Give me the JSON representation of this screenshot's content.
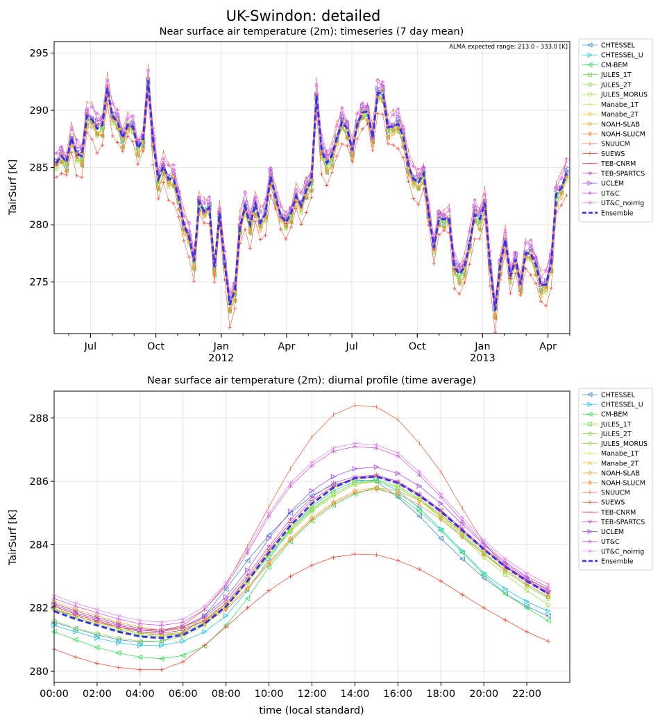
{
  "suptitle": "UK-Swindon: detailed",
  "chart_data": [
    {
      "type": "line",
      "title": "Near surface air temperature (2m): timeseries (7 day mean)",
      "ylabel": "TairSurf [K]",
      "xlabel": "",
      "annotation": "ALMA expected range: 213.0 - 333.0 [K]",
      "ylim": [
        270.5,
        296.0
      ],
      "yticks": [
        275,
        280,
        285,
        290,
        295
      ],
      "xlim_months": [
        4.33,
        28.0
      ],
      "xticks": [
        {
          "label": "Jul",
          "sub": "",
          "m": 6
        },
        {
          "label": "Oct",
          "sub": "",
          "m": 9
        },
        {
          "label": "Jan",
          "sub": "2012",
          "m": 12
        },
        {
          "label": "Apr",
          "sub": "",
          "m": 15
        },
        {
          "label": "Jul",
          "sub": "",
          "m": 18
        },
        {
          "label": "Oct",
          "sub": "",
          "m": 21
        },
        {
          "label": "Jan",
          "sub": "2013",
          "m": 24
        },
        {
          "label": "Apr",
          "sub": "",
          "m": 27
        }
      ],
      "grid": true,
      "legend_position": "outside-right",
      "ensemble_weekly": [
        285.4,
        286.0,
        285.5,
        287.6,
        286.2,
        286.0,
        289.5,
        289.2,
        288.4,
        288.7,
        291.9,
        289.5,
        289.0,
        287.6,
        288.7,
        288.6,
        286.7,
        287.5,
        292.6,
        287.2,
        284.0,
        285.1,
        284.0,
        284.0,
        282.3,
        280.0,
        279.0,
        276.8,
        282.0,
        281.2,
        281.5,
        276.3,
        281.0,
        276.7,
        273.0,
        274.3,
        279.8,
        281.6,
        280.0,
        281.8,
        280.2,
        281.0,
        284.2,
        282.4,
        280.8,
        280.2,
        281.0,
        282.5,
        281.7,
        283.0,
        283.9,
        291.3,
        286.5,
        285.4,
        286.0,
        287.6,
        289.0,
        288.4,
        286.5,
        288.8,
        289.8,
        289.9,
        287.6,
        291.5,
        291.5,
        288.5,
        288.6,
        288.8,
        287.7,
        285.2,
        284.0,
        283.7,
        284.5,
        281.0,
        278.0,
        280.5,
        280.5,
        280.5,
        276.3,
        275.7,
        276.3,
        278.3,
        280.9,
        280.5,
        281.9,
        276.5,
        272.5,
        276.5,
        278.7,
        275.5,
        277.0,
        274.8,
        277.5,
        277.5,
        276.5,
        274.7,
        274.8,
        276.6,
        282.7,
        283.2,
        284.5
      ],
      "suews_weekly_offset": -1.8,
      "snuucm_weekly_offset": 1.1,
      "series_offsets_weekly": {
        "CHTESSEL": 0.0,
        "CHTESSEL_U": -0.1,
        "CM-BEM": -0.6,
        "JULES_1T": -0.2,
        "JULES_2T": -0.3,
        "JULES_MORUS": -0.4,
        "Manabe_1T": 0.1,
        "Manabe_2T": -0.1,
        "NOAH-SLAB": -0.7,
        "NOAH-SLUCM": -0.6,
        "SNUUCM": 1.1,
        "SUEWS": -1.8,
        "TEB-CNRM": 0.2,
        "TEB-SPARTCS": 0.3,
        "UCLEM": 0.4,
        "UT&C": 1.0,
        "UT&C_noirrig": 0.8,
        "Ensemble": 0.0
      }
    },
    {
      "type": "line",
      "title": "Near surface air temperature (2m): diurnal profile (time average)",
      "ylabel": "TairSurf [K]",
      "xlabel": "time (local standard)",
      "ylim": [
        279.65,
        288.85
      ],
      "yticks": [
        280,
        282,
        284,
        286,
        288
      ],
      "xlim": [
        0,
        24
      ],
      "xticks": [
        "00:00",
        "02:00",
        "04:00",
        "06:00",
        "08:00",
        "10:00",
        "12:00",
        "14:00",
        "16:00",
        "18:00",
        "20:00",
        "22:00"
      ],
      "grid": true,
      "legend_position": "outside-right",
      "x": [
        0,
        1,
        2,
        3,
        4,
        5,
        6,
        7,
        8,
        9,
        10,
        11,
        12,
        13,
        14,
        15,
        16,
        17,
        18,
        19,
        20,
        21,
        22,
        23
      ],
      "series": [
        {
          "name": "CHTESSEL",
          "color": "#3d8fd9",
          "marker": "tri-left",
          "values": [
            281.55,
            281.35,
            281.15,
            281.0,
            280.92,
            280.95,
            281.2,
            281.75,
            282.6,
            283.5,
            284.3,
            285.0,
            285.55,
            285.9,
            286.05,
            286.0,
            285.5,
            284.9,
            284.2,
            283.55,
            282.95,
            282.45,
            282.05,
            281.75
          ]
        },
        {
          "name": "CHTESSEL_U",
          "color": "#1fc3e8",
          "marker": "tri-right",
          "values": [
            281.45,
            281.25,
            281.05,
            280.9,
            280.82,
            280.82,
            280.95,
            281.25,
            281.75,
            282.55,
            283.55,
            284.5,
            285.2,
            285.7,
            286.0,
            286.05,
            285.7,
            285.15,
            284.5,
            283.8,
            283.1,
            282.6,
            282.2,
            281.9
          ]
        },
        {
          "name": "CM-BEM",
          "color": "#34e05a",
          "marker": "tri-left",
          "values": [
            281.25,
            281.0,
            280.75,
            280.58,
            280.45,
            280.4,
            280.5,
            280.8,
            281.45,
            282.3,
            283.3,
            284.1,
            284.75,
            285.25,
            285.6,
            285.8,
            285.55,
            285.05,
            284.45,
            283.75,
            283.05,
            282.45,
            282.0,
            281.6
          ]
        },
        {
          "name": "JULES_1T",
          "color": "#6bdc3c",
          "marker": "square",
          "values": [
            282.0,
            281.75,
            281.55,
            281.35,
            281.2,
            281.15,
            281.25,
            281.55,
            282.1,
            282.85,
            283.7,
            284.45,
            285.1,
            285.6,
            285.95,
            286.05,
            285.85,
            285.45,
            284.95,
            284.35,
            283.75,
            283.2,
            282.75,
            282.35
          ]
        },
        {
          "name": "JULES_2T",
          "color": "#8cd63a",
          "marker": "hexagon",
          "values": [
            281.95,
            281.7,
            281.5,
            281.3,
            281.15,
            281.1,
            281.2,
            281.5,
            282.05,
            282.8,
            283.65,
            284.4,
            285.05,
            285.55,
            285.9,
            286.0,
            285.8,
            285.4,
            284.9,
            284.3,
            283.7,
            283.15,
            282.7,
            282.3
          ]
        },
        {
          "name": "JULES_MORUS",
          "color": "#9ee04a",
          "marker": "circle",
          "values": [
            281.6,
            281.35,
            281.2,
            281.05,
            280.95,
            280.95,
            281.1,
            281.45,
            282.05,
            282.85,
            283.75,
            284.5,
            285.15,
            285.6,
            285.95,
            286.0,
            285.8,
            285.4,
            284.85,
            284.25,
            283.6,
            283.05,
            282.55,
            282.1
          ]
        },
        {
          "name": "Manabe_1T",
          "color": "#dfe65a",
          "marker": "plus",
          "values": [
            282.1,
            281.85,
            281.65,
            281.45,
            281.3,
            281.25,
            281.35,
            281.6,
            282.1,
            282.85,
            283.75,
            284.55,
            285.25,
            285.75,
            286.05,
            286.15,
            285.95,
            285.55,
            285.05,
            284.45,
            283.85,
            283.3,
            282.85,
            282.45
          ]
        },
        {
          "name": "Manabe_2T",
          "color": "#f2c83a",
          "marker": "x",
          "values": [
            282.15,
            281.9,
            281.7,
            281.5,
            281.35,
            281.3,
            281.4,
            281.65,
            282.15,
            282.9,
            283.8,
            284.6,
            285.3,
            285.8,
            286.1,
            286.2,
            286.0,
            285.6,
            285.1,
            284.5,
            283.9,
            283.35,
            282.9,
            282.5
          ]
        },
        {
          "name": "NOAH-SLAB",
          "color": "#f0ad42",
          "marker": "diamond",
          "values": [
            282.2,
            281.95,
            281.75,
            281.55,
            281.4,
            281.3,
            281.35,
            281.6,
            282.0,
            282.65,
            283.45,
            284.2,
            284.85,
            285.35,
            285.7,
            285.8,
            285.7,
            285.4,
            284.95,
            284.4,
            283.85,
            283.35,
            282.9,
            282.5
          ]
        },
        {
          "name": "NOAH-SLUCM",
          "color": "#f08a3a",
          "marker": "thin-diamond",
          "values": [
            282.05,
            281.8,
            281.6,
            281.4,
            281.25,
            281.15,
            281.2,
            281.5,
            281.95,
            282.6,
            283.4,
            284.15,
            284.8,
            285.3,
            285.65,
            285.75,
            285.6,
            285.25,
            284.8,
            284.25,
            283.7,
            283.2,
            282.75,
            282.35
          ]
        },
        {
          "name": "SNUUCM",
          "color": "#f26a3a",
          "marker": "vline",
          "values": [
            281.95,
            281.75,
            281.55,
            281.4,
            281.3,
            281.3,
            281.45,
            281.95,
            282.75,
            283.95,
            285.2,
            286.4,
            287.4,
            288.1,
            288.4,
            288.35,
            287.95,
            287.2,
            286.3,
            285.15,
            284.05,
            283.3,
            282.9,
            282.6
          ]
        },
        {
          "name": "SUEWS",
          "color": "#f2503f",
          "marker": "plus-filled",
          "values": [
            280.7,
            280.45,
            280.25,
            280.12,
            280.05,
            280.05,
            280.3,
            280.82,
            281.4,
            282.0,
            282.55,
            283.0,
            283.35,
            283.6,
            283.7,
            283.68,
            283.5,
            283.22,
            282.85,
            282.42,
            282.0,
            281.62,
            281.25,
            280.95
          ]
        },
        {
          "name": "TEB-CNRM",
          "color": "#e8317a",
          "marker": "hline",
          "values": [
            282.05,
            281.8,
            281.6,
            281.4,
            281.25,
            281.2,
            281.3,
            281.6,
            282.15,
            282.95,
            283.85,
            284.7,
            285.4,
            285.85,
            286.1,
            286.15,
            285.95,
            285.55,
            285.05,
            284.45,
            283.85,
            283.3,
            282.85,
            282.45
          ]
        },
        {
          "name": "TEB-SPARTCS",
          "color": "#c74fc4",
          "marker": "tri-down",
          "values": [
            282.15,
            281.9,
            281.7,
            281.5,
            281.35,
            281.3,
            281.4,
            281.7,
            282.25,
            283.05,
            283.95,
            284.8,
            285.5,
            285.95,
            286.15,
            286.2,
            286.0,
            285.6,
            285.1,
            284.5,
            283.9,
            283.35,
            282.9,
            282.5
          ]
        },
        {
          "name": "UCLEM",
          "color": "#a454e8",
          "marker": "tri-right",
          "values": [
            282.1,
            281.85,
            281.65,
            281.45,
            281.3,
            281.25,
            281.4,
            281.75,
            282.35,
            283.2,
            284.2,
            285.05,
            285.7,
            286.15,
            286.4,
            286.45,
            286.25,
            285.85,
            285.3,
            284.65,
            284.0,
            283.4,
            282.95,
            282.55
          ]
        },
        {
          "name": "UT&C",
          "color": "#d45ee0",
          "marker": "tri-up",
          "values": [
            282.3,
            282.05,
            281.85,
            281.65,
            281.5,
            281.45,
            281.55,
            281.95,
            282.7,
            283.75,
            284.9,
            285.85,
            286.5,
            286.95,
            287.1,
            287.05,
            286.8,
            286.2,
            285.5,
            284.75,
            284.05,
            283.45,
            283.0,
            282.65
          ]
        },
        {
          "name": "UT&C_noirrig",
          "color": "#e08be8",
          "marker": "tri-down",
          "values": [
            282.4,
            282.15,
            281.95,
            281.75,
            281.6,
            281.55,
            281.65,
            282.05,
            282.8,
            283.85,
            285.0,
            285.95,
            286.6,
            287.05,
            287.2,
            287.15,
            286.9,
            286.3,
            285.6,
            284.85,
            284.15,
            283.55,
            283.1,
            282.75
          ]
        },
        {
          "name": "Ensemble",
          "color": "#3b34e6",
          "marker": "none",
          "dashed": true,
          "values": [
            281.9,
            281.65,
            281.45,
            281.25,
            281.1,
            281.05,
            281.15,
            281.5,
            282.05,
            282.85,
            283.75,
            284.6,
            285.3,
            285.8,
            286.1,
            286.15,
            285.95,
            285.55,
            285.05,
            284.45,
            283.85,
            283.3,
            282.85,
            282.45
          ]
        }
      ]
    }
  ]
}
